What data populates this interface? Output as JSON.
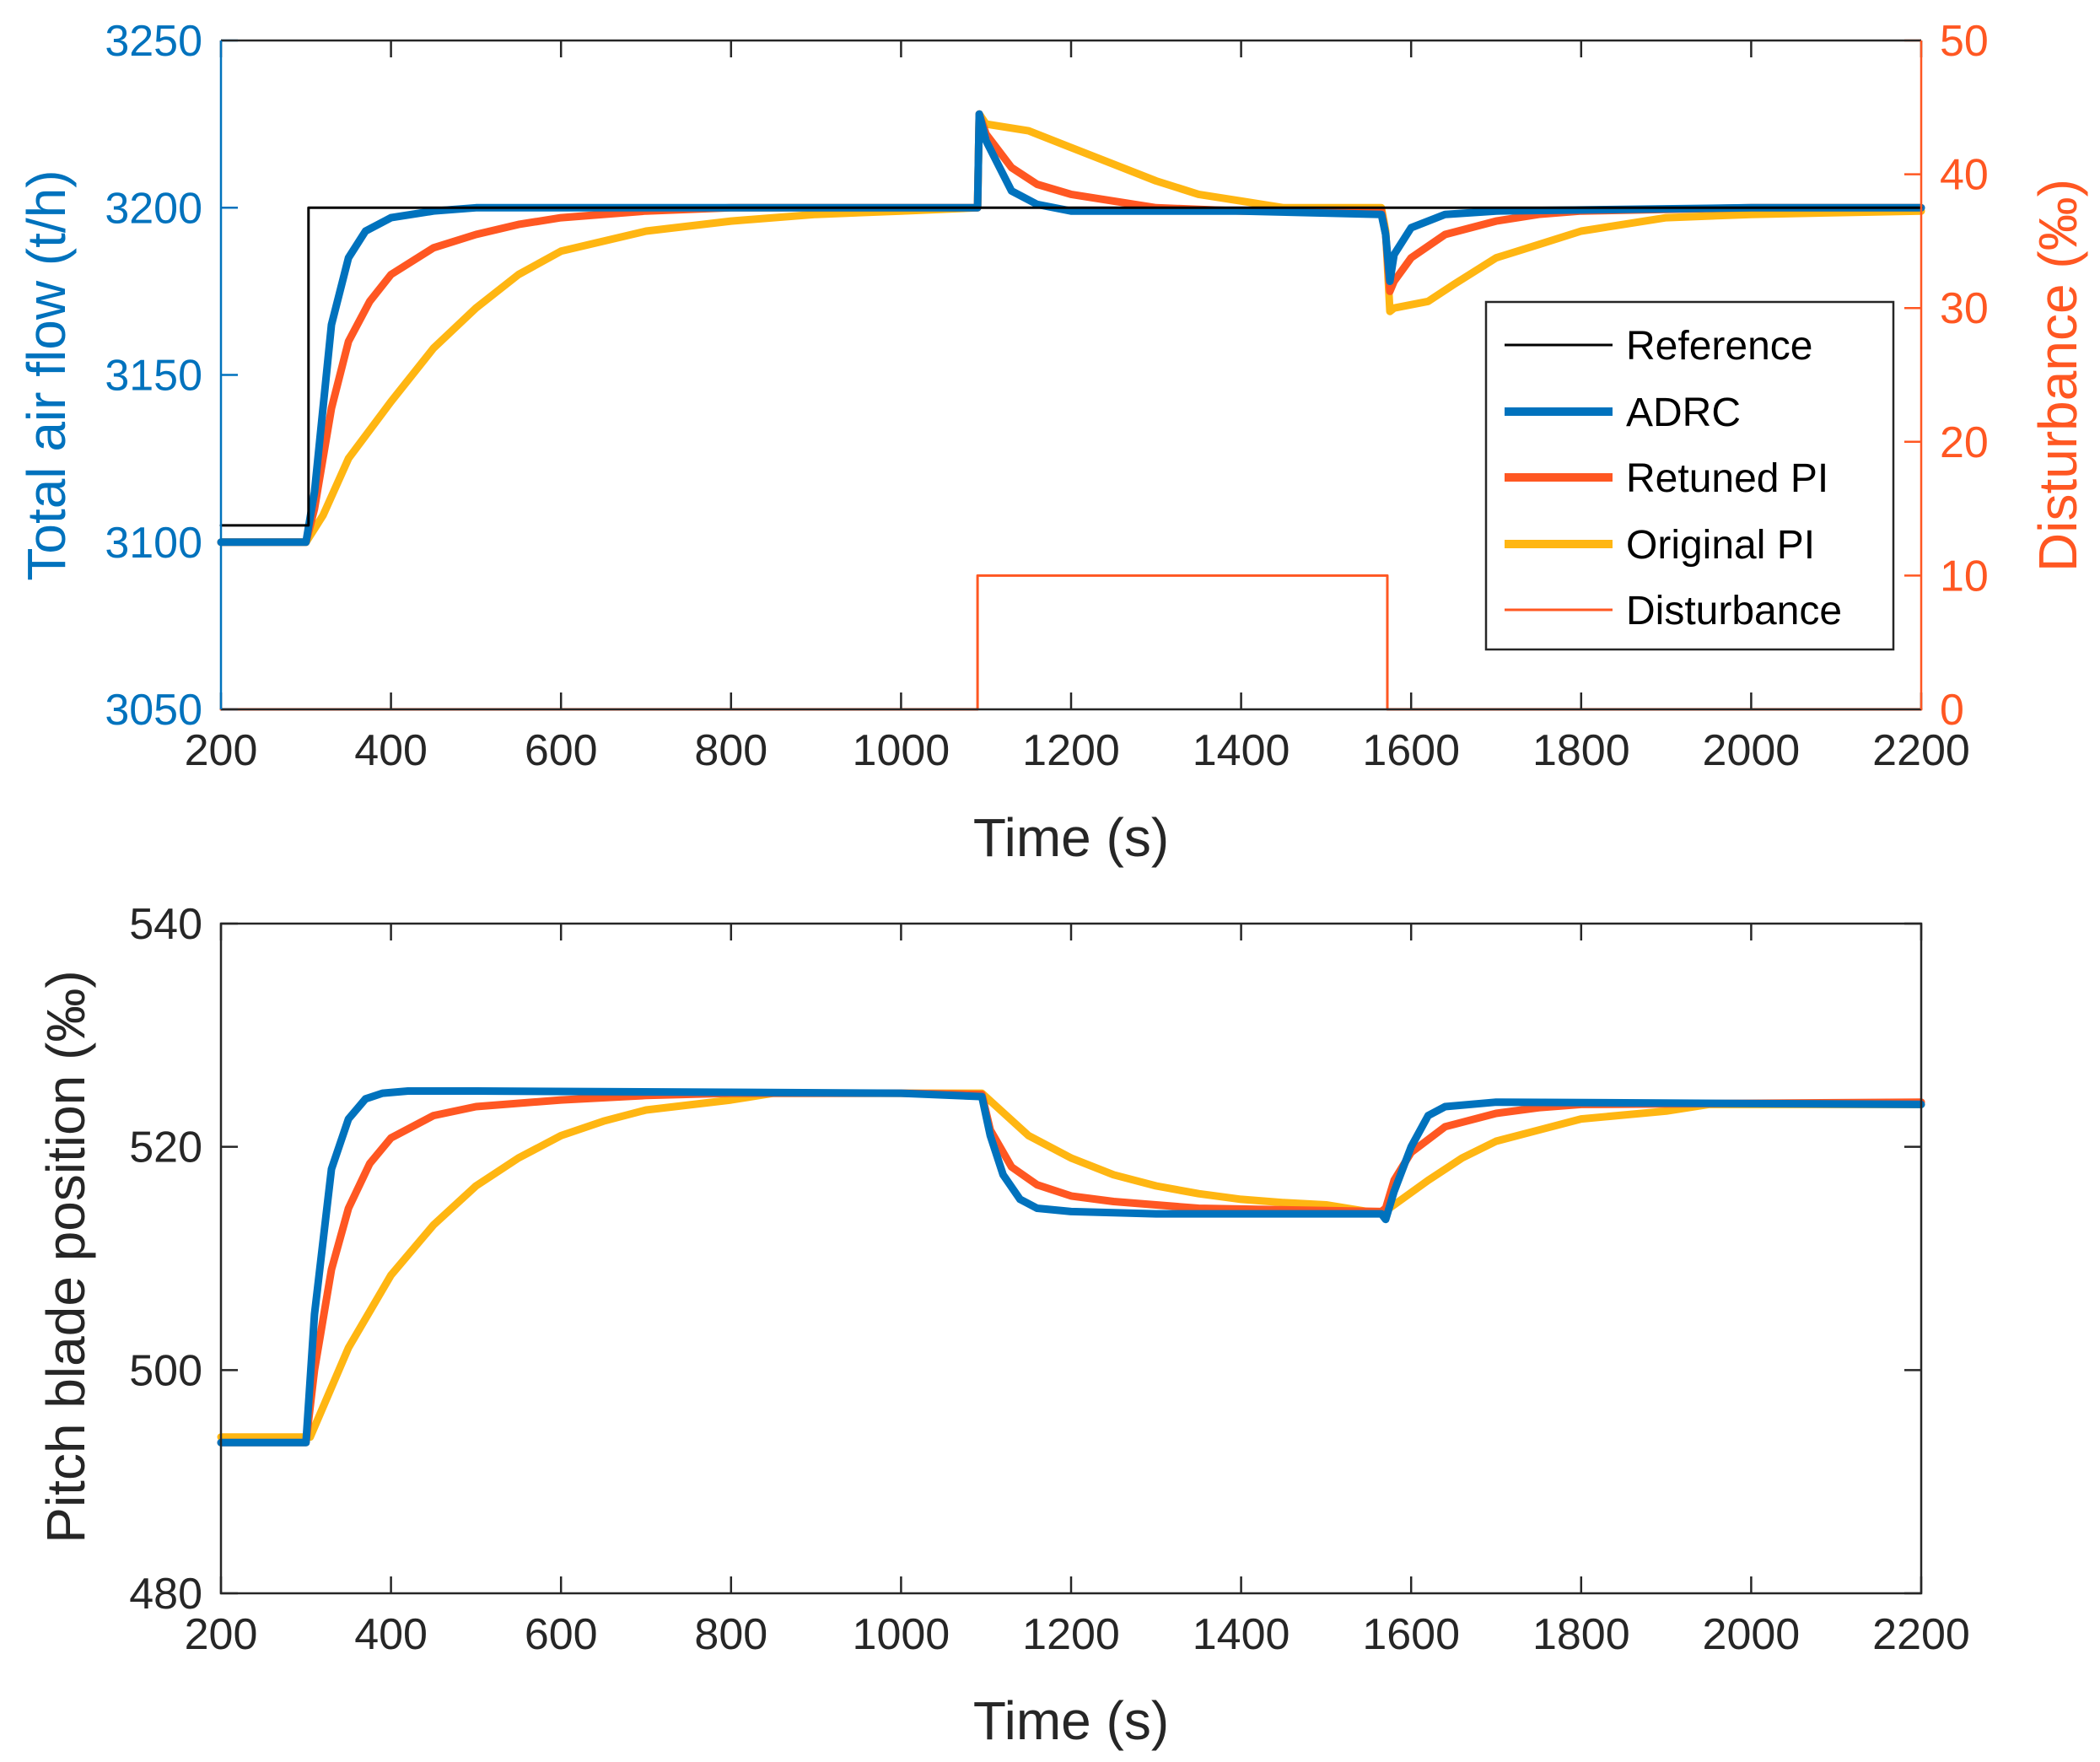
{
  "colors": {
    "reference": "#000000",
    "adrc": "#0072BD",
    "retuned_pi": "#FF5722",
    "original_pi": "#FFB612",
    "disturbance": "#FF5722",
    "axis": "#262626"
  },
  "chart_data": [
    {
      "type": "line",
      "title": "",
      "xlabel": "Time (s)",
      "ylabel": "Total air flow (t/h)",
      "ylabel_right": "Disturbance (‰)",
      "xlim": [
        200,
        2200
      ],
      "ylim": [
        3050,
        3250
      ],
      "ylim_right": [
        0,
        50
      ],
      "xticks": [
        "200",
        "400",
        "600",
        "800",
        "1000",
        "1200",
        "1400",
        "1600",
        "1800",
        "2000",
        "2200"
      ],
      "yticks": [
        "3050",
        "3100",
        "3150",
        "3200",
        "3250"
      ],
      "yticks_right": [
        "0",
        "10",
        "20",
        "30",
        "40",
        "50"
      ],
      "legend": {
        "location": "right",
        "entries": [
          "Reference",
          "ADRC",
          "Retuned PI",
          "Original PI",
          "Disturbance"
        ]
      },
      "series": [
        {
          "name": "Reference",
          "axis": "left",
          "x": [
            200,
            303,
            303,
            2200
          ],
          "y": [
            3105,
            3105,
            3200,
            3200
          ]
        },
        {
          "name": "ADRC",
          "axis": "left",
          "x": [
            200,
            300,
            310,
            330,
            350,
            370,
            400,
            450,
            500,
            700,
            1000,
            1090,
            1092,
            1100,
            1130,
            1160,
            1200,
            1300,
            1400,
            1565,
            1570,
            1575,
            1580,
            1600,
            1640,
            1700,
            2000,
            2200
          ],
          "y": [
            3100,
            3100,
            3115,
            3165,
            3185,
            3193,
            3197,
            3199,
            3200,
            3200,
            3200,
            3200,
            3228,
            3220,
            3205,
            3201,
            3199,
            3199,
            3199,
            3198,
            3192,
            3178,
            3186,
            3194,
            3198,
            3199,
            3200,
            3200
          ]
        },
        {
          "name": "Retuned PI",
          "axis": "left",
          "x": [
            200,
            300,
            310,
            330,
            350,
            375,
            400,
            450,
            500,
            550,
            600,
            700,
            800,
            1000,
            1090,
            1092,
            1100,
            1130,
            1160,
            1200,
            1300,
            1400,
            1565,
            1570,
            1575,
            1580,
            1600,
            1640,
            1700,
            1750,
            1800,
            2000,
            2200
          ],
          "y": [
            3100,
            3100,
            3110,
            3140,
            3160,
            3172,
            3180,
            3188,
            3192,
            3195,
            3197,
            3199,
            3200,
            3200,
            3200,
            3228,
            3222,
            3212,
            3207,
            3204,
            3200,
            3199,
            3199,
            3192,
            3175,
            3178,
            3185,
            3192,
            3196,
            3198,
            3199,
            3200,
            3200
          ]
        },
        {
          "name": "Original PI",
          "axis": "left",
          "x": [
            200,
            300,
            320,
            350,
            400,
            450,
            500,
            550,
            600,
            700,
            800,
            900,
            1000,
            1090,
            1092,
            1100,
            1150,
            1200,
            1250,
            1300,
            1350,
            1400,
            1450,
            1565,
            1570,
            1575,
            1580,
            1620,
            1650,
            1700,
            1750,
            1800,
            1900,
            2000,
            2200
          ],
          "y": [
            3100,
            3100,
            3108,
            3125,
            3142,
            3158,
            3170,
            3180,
            3187,
            3193,
            3196,
            3198,
            3199,
            3200,
            3228,
            3225,
            3223,
            3218,
            3213,
            3208,
            3204,
            3202,
            3200,
            3200,
            3193,
            3169,
            3170,
            3172,
            3177,
            3185,
            3189,
            3193,
            3197,
            3198,
            3199
          ]
        },
        {
          "name": "Disturbance",
          "axis": "right",
          "x": [
            200,
            1090,
            1090,
            1572,
            1572,
            2200
          ],
          "y": [
            0,
            0,
            10,
            10,
            0,
            0
          ]
        }
      ]
    },
    {
      "type": "line",
      "title": "",
      "xlabel": "Time (s)",
      "ylabel": "Pitch blade position (‰)",
      "xlim": [
        200,
        2200
      ],
      "ylim": [
        480,
        540
      ],
      "xticks": [
        "200",
        "400",
        "600",
        "800",
        "1000",
        "1200",
        "1400",
        "1600",
        "1800",
        "2000",
        "2200"
      ],
      "yticks": [
        "480",
        "500",
        "520",
        "540"
      ],
      "series": [
        {
          "name": "ADRC",
          "x": [
            200,
            300,
            310,
            330,
            350,
            370,
            390,
            420,
            500,
            1000,
            1095,
            1105,
            1120,
            1140,
            1160,
            1200,
            1300,
            1565,
            1570,
            1580,
            1600,
            1620,
            1640,
            1700,
            2200
          ],
          "y": [
            493.5,
            493.5,
            505,
            518,
            522.5,
            524.3,
            524.8,
            525,
            525,
            524.8,
            524.5,
            521,
            517.5,
            515.3,
            514.5,
            514.2,
            514,
            514,
            513.5,
            516,
            520,
            522.8,
            523.6,
            524,
            523.8
          ]
        },
        {
          "name": "Retuned PI",
          "x": [
            200,
            300,
            310,
            330,
            350,
            375,
            400,
            450,
            500,
            600,
            700,
            800,
            1000,
            1095,
            1105,
            1130,
            1160,
            1200,
            1250,
            1300,
            1350,
            1565,
            1570,
            1580,
            1600,
            1640,
            1700,
            1750,
            1800,
            2200
          ],
          "y": [
            493.5,
            493.5,
            500,
            509,
            514.5,
            518.5,
            520.8,
            522.8,
            523.6,
            524.2,
            524.6,
            524.8,
            524.8,
            524.7,
            521.5,
            518.2,
            516.6,
            515.6,
            515.1,
            514.8,
            514.5,
            514.2,
            514.5,
            517,
            519.5,
            521.8,
            523,
            523.5,
            523.8,
            524
          ]
        },
        {
          "name": "Original PI",
          "x": [
            200,
            305,
            350,
            400,
            450,
            500,
            550,
            600,
            650,
            700,
            800,
            850,
            1095,
            1150,
            1200,
            1250,
            1300,
            1350,
            1400,
            1450,
            1500,
            1565,
            1580,
            1620,
            1660,
            1700,
            1750,
            1800,
            1900,
            1950,
            2200
          ],
          "y": [
            494,
            494,
            502,
            508.5,
            513,
            516.5,
            519,
            521,
            522.3,
            523.3,
            524.2,
            524.8,
            524.8,
            521,
            519,
            517.5,
            516.5,
            515.8,
            515.3,
            515,
            514.8,
            514,
            514.8,
            517,
            519,
            520.5,
            521.5,
            522.5,
            523.2,
            523.8,
            523.8
          ]
        }
      ]
    }
  ]
}
